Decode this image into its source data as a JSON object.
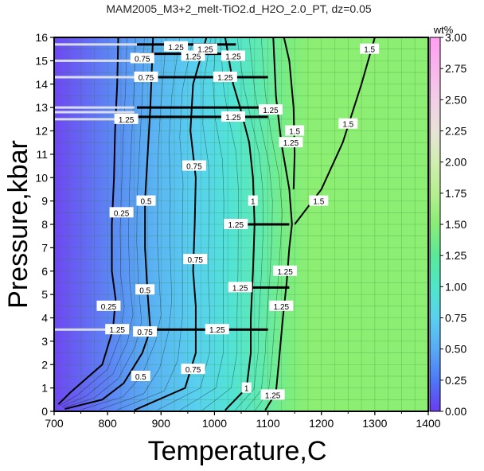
{
  "chart_data": {
    "type": "heatmap",
    "title": "MAM2005_M3+2_melt-TiO2.d_H2O_2.0_PT, dz=0.05",
    "xlabel": "Temperature,C",
    "ylabel": "Pressure,kbar",
    "xlim": [
      700,
      1400
    ],
    "ylim": [
      0,
      16
    ],
    "x_ticks": [
      "700",
      "800",
      "900",
      "1000",
      "1100",
      "1200",
      "1300",
      "1400"
    ],
    "y_ticks": [
      "0",
      "1",
      "2",
      "3",
      "4",
      "5",
      "6",
      "7",
      "8",
      "9",
      "10",
      "11",
      "12",
      "13",
      "14",
      "15",
      "16"
    ],
    "grid": true,
    "colorbar": {
      "unit": "wt%",
      "range": [
        0,
        3
      ],
      "ticks": [
        "0.00",
        "0.25",
        "0.50",
        "0.75",
        "1.00",
        "1.25",
        "1.50",
        "1.75",
        "2.00",
        "2.25",
        "2.50",
        "2.75",
        "3.00"
      ],
      "colors": [
        "#6a3cf0",
        "#4d78f5",
        "#5aaaf5",
        "#5ad0ee",
        "#50e6c8",
        "#5be89a",
        "#8aec78",
        "#b6ee90",
        "#d0eeb0",
        "#e8e2d8",
        "#f2cfe6",
        "#ff9ef2"
      ]
    },
    "contour_levels": [
      "0.25",
      "0.5",
      "0.75",
      "1",
      "1.25",
      "1.5"
    ],
    "contours": [
      {
        "level": 0.25,
        "points": [
          [
            708,
            0.3
          ],
          [
            730,
            0.8
          ],
          [
            790,
            2.0
          ],
          [
            810,
            3.5
          ],
          [
            815,
            4.8
          ],
          [
            808,
            6.0
          ],
          [
            808,
            8.0
          ],
          [
            812,
            10.0
          ],
          [
            814,
            12.0
          ],
          [
            818,
            14.0
          ],
          [
            820,
            16.0
          ]
        ]
      },
      {
        "level": 0.5,
        "points": [
          [
            720,
            0.1
          ],
          [
            790,
            0.5
          ],
          [
            830,
            1.2
          ],
          [
            865,
            2.5
          ],
          [
            880,
            3.5
          ],
          [
            875,
            5.0
          ],
          [
            870,
            7.0
          ],
          [
            870,
            9.0
          ],
          [
            875,
            11.0
          ],
          [
            880,
            13.0
          ],
          [
            885,
            16.0
          ]
        ]
      },
      {
        "level": 0.75,
        "points": [
          [
            850,
            0.05
          ],
          [
            945,
            1.0
          ],
          [
            965,
            2.5
          ],
          [
            965,
            4.5
          ],
          [
            960,
            6.0
          ],
          [
            963,
            8.0
          ],
          [
            965,
            10.0
          ],
          [
            955,
            12.0
          ],
          [
            960,
            14.0
          ],
          [
            985,
            16.0
          ]
        ]
      },
      {
        "level": 1.0,
        "points": [
          [
            1020,
            0.05
          ],
          [
            1060,
            1.0
          ],
          [
            1068,
            2.5
          ],
          [
            1068,
            4.0
          ],
          [
            1072,
            6.0
          ],
          [
            1075,
            8.0
          ],
          [
            1072,
            10.0
          ],
          [
            1065,
            11.5
          ],
          [
            1048,
            13.0
          ],
          [
            1035,
            14.0
          ],
          [
            1020,
            16.0
          ]
        ]
      },
      {
        "level": 1.25,
        "points": [
          [
            1095,
            0.05
          ],
          [
            1115,
            0.8
          ],
          [
            1122,
            2.5
          ],
          [
            1128,
            4.0
          ],
          [
            1135,
            5.5
          ],
          [
            1140,
            7.0
          ],
          [
            1145,
            8.0
          ],
          [
            1140,
            9.5
          ],
          [
            1125,
            11.5
          ],
          [
            1115,
            13.5
          ],
          [
            1110,
            16.0
          ]
        ]
      },
      {
        "level": 1.5,
        "points": [
          [
            1148,
            9.5
          ],
          [
            1150,
            11.0
          ],
          [
            1148,
            13.0
          ],
          [
            1140,
            15.0
          ],
          [
            1130,
            16.0
          ]
        ]
      },
      {
        "level": 1.5,
        "points": [
          [
            1150,
            8.0
          ],
          [
            1200,
            9.5
          ],
          [
            1240,
            11.5
          ],
          [
            1275,
            14.0
          ],
          [
            1300,
            16.0
          ]
        ]
      }
    ],
    "contour_labels": [
      {
        "text": "0.25",
        "x": 826,
        "y": 8.5
      },
      {
        "text": "0.25",
        "x": 802,
        "y": 4.5
      },
      {
        "text": "0.5",
        "x": 872,
        "y": 9.0
      },
      {
        "text": "0.5",
        "x": 870,
        "y": 5.2
      },
      {
        "text": "0.5",
        "x": 862,
        "y": 1.5
      },
      {
        "text": "0.75",
        "x": 962,
        "y": 10.5
      },
      {
        "text": "0.75",
        "x": 964,
        "y": 6.5
      },
      {
        "text": "0.75",
        "x": 960,
        "y": 1.8
      },
      {
        "text": "0.75",
        "x": 865,
        "y": 15.1
      },
      {
        "text": "0.75",
        "x": 872,
        "y": 14.3
      },
      {
        "text": "0.75",
        "x": 870,
        "y": 3.4
      },
      {
        "text": "1",
        "x": 1072,
        "y": 9.0
      },
      {
        "text": "1",
        "x": 1060,
        "y": 1.0
      },
      {
        "text": "1.25",
        "x": 1143,
        "y": 11.5
      },
      {
        "text": "1.25",
        "x": 1132,
        "y": 6.0
      },
      {
        "text": "1.25",
        "x": 1125,
        "y": 4.5
      },
      {
        "text": "1.25",
        "x": 1109,
        "y": 0.7
      },
      {
        "text": "1.25",
        "x": 1040,
        "y": 8.0
      },
      {
        "text": "1.25",
        "x": 1048,
        "y": 5.3
      },
      {
        "text": "1.25",
        "x": 1020,
        "y": 14.3
      },
      {
        "text": "1.25",
        "x": 1035,
        "y": 12.6
      },
      {
        "text": "1.25",
        "x": 1105,
        "y": 12.9
      },
      {
        "text": "1.25",
        "x": 960,
        "y": 15.2
      },
      {
        "text": "1.25",
        "x": 928,
        "y": 15.6
      },
      {
        "text": "1.25",
        "x": 983,
        "y": 15.5
      },
      {
        "text": "1.25",
        "x": 1035,
        "y": 15.2
      },
      {
        "text": "1.25",
        "x": 1005,
        "y": 3.5
      },
      {
        "text": "1.25",
        "x": 818,
        "y": 3.5
      },
      {
        "text": "1.25",
        "x": 835,
        "y": 12.5
      },
      {
        "text": "1.5",
        "x": 1195,
        "y": 9.0
      },
      {
        "text": "1.5",
        "x": 1150,
        "y": 12.0
      },
      {
        "text": "1.5",
        "x": 1250,
        "y": 12.3
      },
      {
        "text": "1.5",
        "x": 1290,
        "y": 15.5
      }
    ]
  }
}
